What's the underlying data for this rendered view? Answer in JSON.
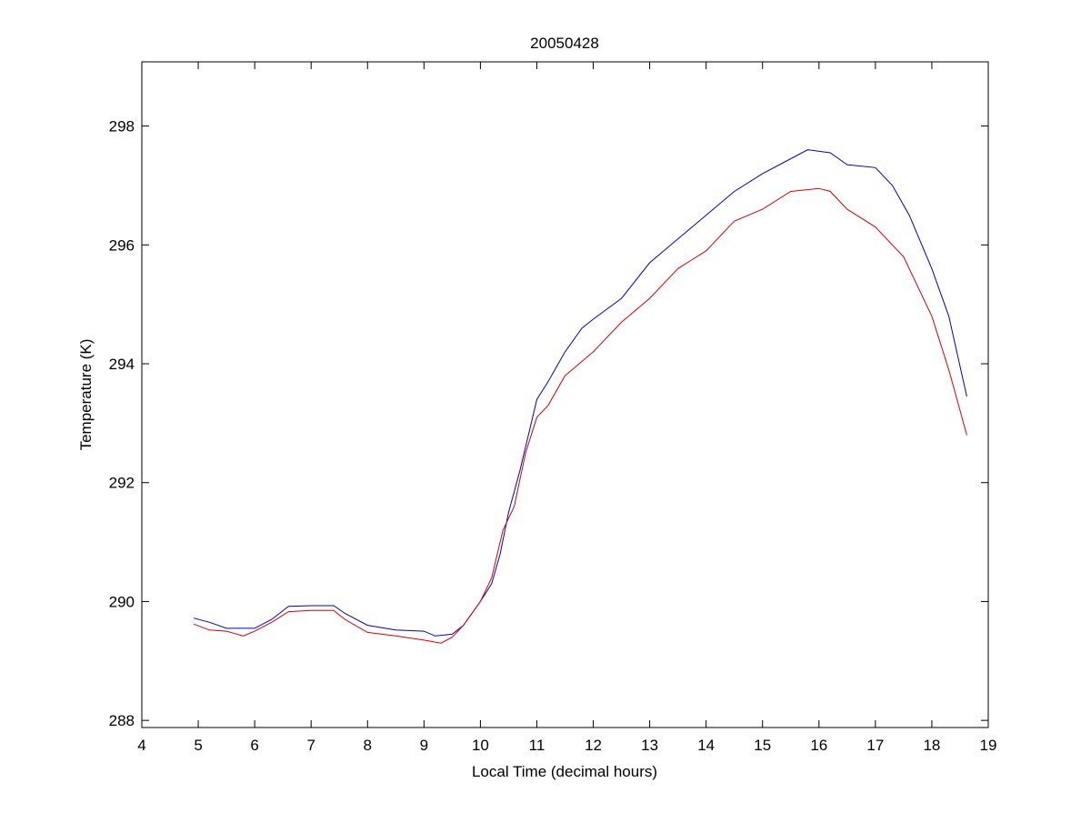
{
  "chart_data": {
    "type": "line",
    "title": "20050428",
    "xlabel": "Local Time (decimal hours)",
    "ylabel": "Temperature (K)",
    "xlim": [
      4,
      19
    ],
    "ylim": [
      287.88,
      299.08
    ],
    "xticks": [
      4,
      5,
      6,
      7,
      8,
      9,
      10,
      11,
      12,
      13,
      14,
      15,
      16,
      17,
      18,
      19
    ],
    "yticks": [
      288,
      290,
      292,
      294,
      296,
      298
    ],
    "grid": false,
    "series": [
      {
        "name": "blue",
        "color": "#0000cc",
        "x": [
          4.92,
          5.2,
          5.5,
          6.0,
          6.3,
          6.6,
          7.0,
          7.4,
          7.6,
          8.0,
          8.5,
          9.0,
          9.2,
          9.5,
          9.7,
          10.0,
          10.2,
          10.35,
          10.5,
          10.7,
          10.9,
          11.0,
          11.2,
          11.5,
          11.8,
          12.0,
          12.5,
          13.0,
          13.5,
          14.0,
          14.5,
          15.0,
          15.5,
          15.8,
          16.2,
          16.5,
          17.0,
          17.3,
          17.6,
          18.0,
          18.3,
          18.62
        ],
        "y": [
          289.72,
          289.65,
          289.55,
          289.55,
          289.7,
          289.92,
          289.93,
          289.93,
          289.8,
          289.6,
          289.52,
          289.5,
          289.42,
          289.45,
          289.6,
          290.0,
          290.3,
          290.8,
          291.5,
          292.2,
          293.0,
          293.4,
          293.7,
          294.2,
          294.6,
          294.75,
          295.1,
          295.7,
          296.1,
          296.5,
          296.9,
          297.2,
          297.45,
          297.6,
          297.55,
          297.35,
          297.3,
          297.0,
          296.5,
          295.6,
          294.8,
          293.45
        ]
      },
      {
        "name": "red",
        "color": "#dd0000",
        "x": [
          4.92,
          5.2,
          5.5,
          5.8,
          6.0,
          6.3,
          6.6,
          7.0,
          7.4,
          7.6,
          8.0,
          8.5,
          9.0,
          9.3,
          9.5,
          9.7,
          10.0,
          10.2,
          10.4,
          10.6,
          10.8,
          11.0,
          11.2,
          11.5,
          12.0,
          12.5,
          13.0,
          13.5,
          14.0,
          14.5,
          15.0,
          15.5,
          16.0,
          16.2,
          16.5,
          17.0,
          17.5,
          18.0,
          18.3,
          18.62
        ],
        "y": [
          289.62,
          289.52,
          289.5,
          289.42,
          289.5,
          289.65,
          289.83,
          289.85,
          289.85,
          289.7,
          289.48,
          289.42,
          289.35,
          289.3,
          289.4,
          289.6,
          290.0,
          290.4,
          291.2,
          291.6,
          292.5,
          293.1,
          293.3,
          293.8,
          294.2,
          294.7,
          295.1,
          295.6,
          295.9,
          296.4,
          296.6,
          296.9,
          296.95,
          296.9,
          296.6,
          296.3,
          295.8,
          294.8,
          293.9,
          292.8
        ]
      }
    ]
  }
}
